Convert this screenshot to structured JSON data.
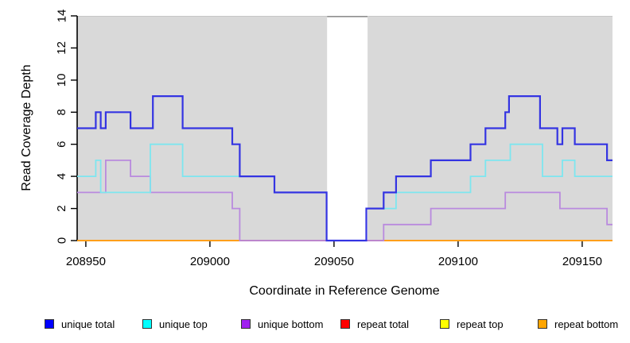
{
  "page": {
    "background": "#ffffff"
  },
  "chart_data": {
    "type": "line",
    "subtype": "step",
    "title": "",
    "xlabel": "Coordinate in Reference Genome",
    "ylabel": "Read Coverage Depth",
    "xlim": [
      208946.5,
      209162.2
    ],
    "ylim": [
      0,
      14
    ],
    "x_ticks": [
      208950,
      209000,
      209050,
      209100,
      209150
    ],
    "y_ticks": [
      0,
      2,
      4,
      6,
      8,
      10,
      12,
      14
    ],
    "grid": false,
    "legend_position": "bottom",
    "plot_bg_color": "#d9d9d9",
    "axis_color": "#000000",
    "gap_region": {
      "x_start": 209047.2,
      "x_end": 209063.5,
      "fill": "#ffffff",
      "top_border_color": "#8f8f8f"
    },
    "draw_order": [
      4,
      3,
      5,
      2,
      1,
      0
    ],
    "series": [
      {
        "name": "unique total",
        "legend_color": "#0000ff",
        "line_color": "#3434e2",
        "line_width": 2.2,
        "steps": [
          [
            208946.5,
            7
          ],
          [
            208954,
            8
          ],
          [
            208956,
            7
          ],
          [
            208958,
            8
          ],
          [
            208968,
            7
          ],
          [
            208977,
            9
          ],
          [
            208989,
            7
          ],
          [
            209009,
            6
          ],
          [
            209012,
            4
          ],
          [
            209026,
            3
          ],
          [
            209047,
            0
          ],
          [
            209063,
            2
          ],
          [
            209070,
            3
          ],
          [
            209075,
            4
          ],
          [
            209089,
            5
          ],
          [
            209105,
            6
          ],
          [
            209111,
            7
          ],
          [
            209119,
            8
          ],
          [
            209120.5,
            9
          ],
          [
            209133,
            7
          ],
          [
            209140,
            6
          ],
          [
            209142,
            7
          ],
          [
            209147,
            6
          ],
          [
            209160,
            5
          ]
        ]
      },
      {
        "name": "unique top",
        "legend_color": "#00ffff",
        "line_color": "#7de6ef",
        "line_width": 1.8,
        "steps": [
          [
            208946.5,
            4
          ],
          [
            208954,
            5
          ],
          [
            208956,
            3
          ],
          [
            208976,
            6
          ],
          [
            208989,
            4
          ],
          [
            209026,
            3
          ],
          [
            209047,
            0
          ],
          [
            209063,
            2
          ],
          [
            209075,
            3
          ],
          [
            209105,
            4
          ],
          [
            209111,
            5
          ],
          [
            209121,
            6
          ],
          [
            209134,
            4
          ],
          [
            209142,
            5
          ],
          [
            209147,
            4
          ]
        ]
      },
      {
        "name": "unique bottom",
        "legend_color": "#a020f0",
        "line_color": "#b98ade",
        "line_width": 1.8,
        "steps": [
          [
            208946.5,
            3
          ],
          [
            208958,
            5
          ],
          [
            208968,
            4
          ],
          [
            208976,
            3
          ],
          [
            209009,
            2
          ],
          [
            209012,
            0
          ],
          [
            209070,
            1
          ],
          [
            209089,
            2
          ],
          [
            209119,
            3
          ],
          [
            209141,
            2
          ],
          [
            209160,
            1
          ]
        ]
      },
      {
        "name": "repeat total",
        "legend_color": "#ff0000",
        "line_color": "#cc4466",
        "line_width": 1.8,
        "steps": [
          [
            208946.5,
            0
          ]
        ]
      },
      {
        "name": "repeat top",
        "legend_color": "#ffff00",
        "line_color": "#f2f200",
        "line_width": 1.8,
        "steps": [
          [
            208946.5,
            0
          ]
        ]
      },
      {
        "name": "repeat bottom",
        "legend_color": "#ffa500",
        "line_color": "#ff9f1a",
        "line_width": 2,
        "steps": [
          [
            208946.5,
            0
          ]
        ],
        "visible_ranges": [
          [
            208946.5,
            209012
          ],
          [
            209070,
            209162.2
          ]
        ]
      }
    ]
  }
}
